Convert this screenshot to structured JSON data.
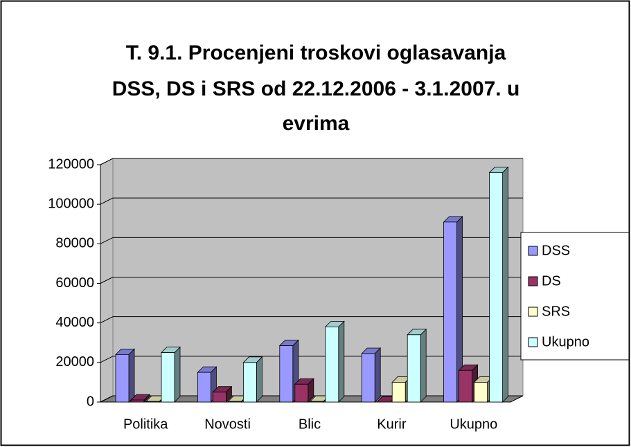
{
  "chart_data": {
    "type": "bar3d",
    "title": [
      "T. 9.1. Procenjeni troskovi oglasavanja",
      "DSS, DS i SRS od 22.12.2006 - 3.1.2007. u",
      "evrima"
    ],
    "categories": [
      "Politika",
      "Novosti",
      "Blic",
      "Kurir",
      "Ukupno"
    ],
    "series": [
      {
        "name": "DSS",
        "color": "#9999ff",
        "values": [
          24000,
          15000,
          28500,
          24500,
          91000
        ]
      },
      {
        "name": "DS",
        "color": "#993366",
        "values": [
          1000,
          5000,
          9000,
          0,
          16000
        ]
      },
      {
        "name": "SRS",
        "color": "#ffffcc",
        "values": [
          300,
          300,
          300,
          10000,
          10000
        ]
      },
      {
        "name": "Ukupno",
        "color": "#ccffff",
        "values": [
          25000,
          20000,
          38000,
          34000,
          116000
        ]
      }
    ],
    "ylim": [
      0,
      120000
    ],
    "yticks": [
      0,
      20000,
      40000,
      60000,
      80000,
      100000,
      120000
    ],
    "grid": true,
    "legend": "right"
  }
}
